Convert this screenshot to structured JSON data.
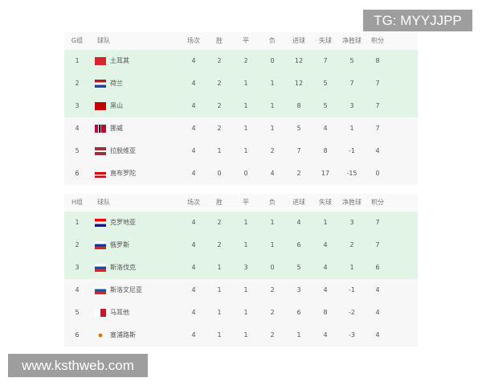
{
  "watermark_top": "TG: MYYJJPP",
  "watermark_bottom": "www.ksthweb.com",
  "colors": {
    "highlight": "#e2f4e6",
    "table_bg": "#f7f7f7",
    "watermark_bg": "#9e9e9e"
  },
  "columns": [
    "球队",
    "场次",
    "胜",
    "平",
    "负",
    "进球",
    "失球",
    "净胜球",
    "积分"
  ],
  "groups": [
    {
      "label": "G组",
      "rows": [
        {
          "rank": "1",
          "team": "土耳其",
          "flag": "turkey-flag",
          "p": "4",
          "w": "2",
          "d": "2",
          "l": "0",
          "gf": "12",
          "ga": "7",
          "gd": "5",
          "pts": "8",
          "highlight": true
        },
        {
          "rank": "2",
          "team": "荷兰",
          "flag": "netherlands-flag",
          "p": "4",
          "w": "2",
          "d": "1",
          "l": "1",
          "gf": "12",
          "ga": "5",
          "gd": "7",
          "pts": "7",
          "highlight": true
        },
        {
          "rank": "3",
          "team": "黑山",
          "flag": "montenegro-flag",
          "p": "4",
          "w": "2",
          "d": "1",
          "l": "1",
          "gf": "8",
          "ga": "5",
          "gd": "3",
          "pts": "7",
          "highlight": true
        },
        {
          "rank": "4",
          "team": "挪威",
          "flag": "norway-flag",
          "p": "4",
          "w": "2",
          "d": "1",
          "l": "1",
          "gf": "5",
          "ga": "4",
          "gd": "1",
          "pts": "7",
          "highlight": false
        },
        {
          "rank": "5",
          "team": "拉脱维亚",
          "flag": "latvia-flag",
          "p": "4",
          "w": "1",
          "d": "1",
          "l": "2",
          "gf": "7",
          "ga": "8",
          "gd": "-1",
          "pts": "4",
          "highlight": false
        },
        {
          "rank": "6",
          "team": "直布罗陀",
          "flag": "gibraltar-flag",
          "p": "4",
          "w": "0",
          "d": "0",
          "l": "4",
          "gf": "2",
          "ga": "17",
          "gd": "-15",
          "pts": "0",
          "highlight": false
        }
      ]
    },
    {
      "label": "H组",
      "rows": [
        {
          "rank": "1",
          "team": "克罗地亚",
          "flag": "croatia-flag",
          "p": "4",
          "w": "2",
          "d": "1",
          "l": "1",
          "gf": "4",
          "ga": "1",
          "gd": "3",
          "pts": "7",
          "highlight": true
        },
        {
          "rank": "2",
          "team": "俄罗斯",
          "flag": "russia-flag",
          "p": "4",
          "w": "2",
          "d": "1",
          "l": "1",
          "gf": "6",
          "ga": "4",
          "gd": "2",
          "pts": "7",
          "highlight": true
        },
        {
          "rank": "3",
          "team": "斯洛伐克",
          "flag": "slovakia-flag",
          "p": "4",
          "w": "1",
          "d": "3",
          "l": "0",
          "gf": "5",
          "ga": "4",
          "gd": "1",
          "pts": "6",
          "highlight": true
        },
        {
          "rank": "4",
          "team": "斯洛文尼亚",
          "flag": "slovenia-flag",
          "p": "4",
          "w": "1",
          "d": "1",
          "l": "2",
          "gf": "3",
          "ga": "4",
          "gd": "-1",
          "pts": "4",
          "highlight": false
        },
        {
          "rank": "5",
          "team": "马耳他",
          "flag": "malta-flag",
          "p": "4",
          "w": "1",
          "d": "1",
          "l": "2",
          "gf": "6",
          "ga": "8",
          "gd": "-2",
          "pts": "4",
          "highlight": false
        },
        {
          "rank": "6",
          "team": "塞浦路斯",
          "flag": "cyprus-flag",
          "p": "4",
          "w": "1",
          "d": "1",
          "l": "2",
          "gf": "1",
          "ga": "4",
          "gd": "-3",
          "pts": "4",
          "highlight": false
        }
      ]
    }
  ]
}
